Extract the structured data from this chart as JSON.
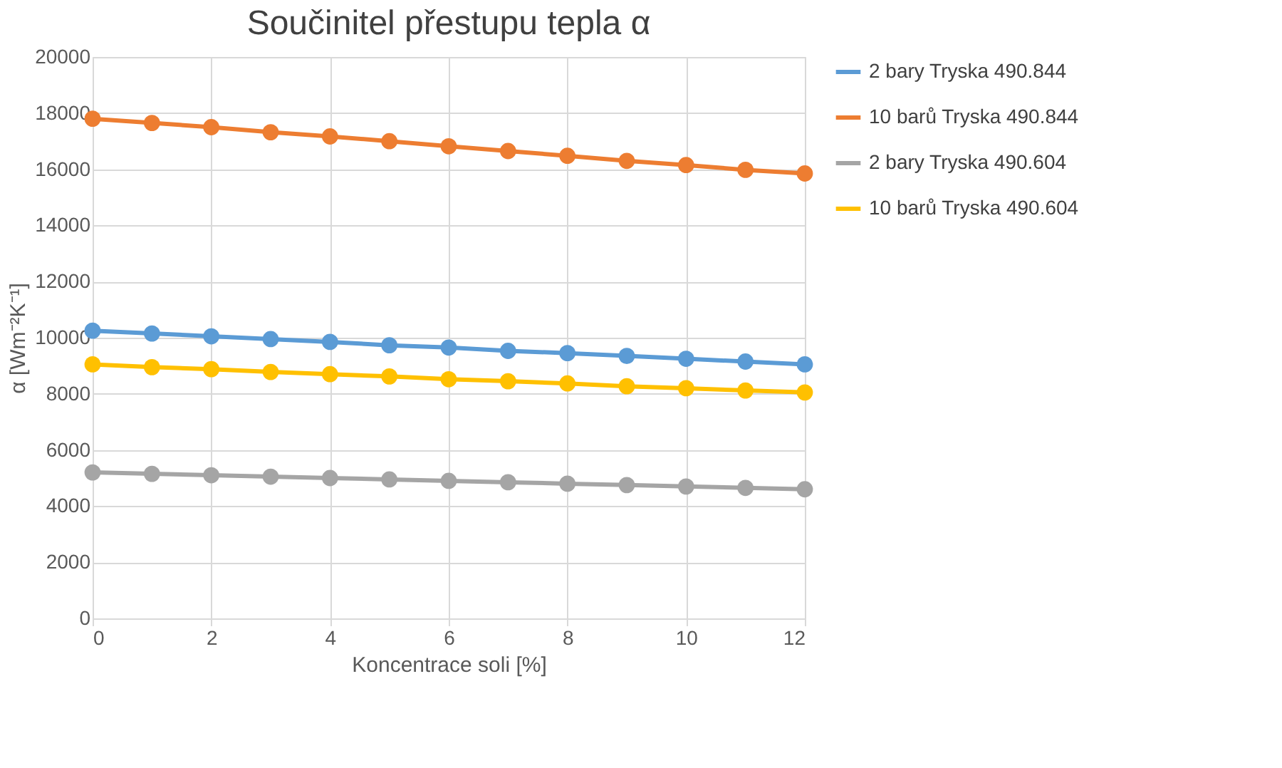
{
  "chart_data": {
    "type": "line",
    "title": "Součinitel přestupu tepla α",
    "xlabel": "Koncentrace soli [%]",
    "ylabel": "α  [Wm⁻²K⁻¹]",
    "x": [
      0,
      1,
      2,
      3,
      4,
      5,
      6,
      7,
      8,
      9,
      10,
      11,
      12
    ],
    "series": [
      {
        "name": "2 bary Tryska 490.844",
        "color": "#5b9bd5",
        "values": [
          10250,
          10150,
          10050,
          9950,
          9850,
          9730,
          9650,
          9530,
          9450,
          9350,
          9250,
          9150,
          9050
        ]
      },
      {
        "name": "10 barů Tryska 490.844",
        "color": "#ed7d31",
        "values": [
          17800,
          17650,
          17500,
          17320,
          17170,
          17000,
          16820,
          16650,
          16480,
          16300,
          16150,
          15980,
          15850
        ]
      },
      {
        "name": "2 bary Tryska 490.604",
        "color": "#a5a5a5",
        "values": [
          5200,
          5150,
          5100,
          5050,
          5000,
          4950,
          4900,
          4850,
          4800,
          4750,
          4700,
          4650,
          4600
        ]
      },
      {
        "name": "10 barů Tryska 490.604",
        "color": "#ffc000",
        "values": [
          9050,
          8950,
          8880,
          8780,
          8700,
          8620,
          8520,
          8450,
          8370,
          8270,
          8200,
          8120,
          8050
        ]
      }
    ],
    "xlim": [
      0,
      12
    ],
    "xticks": [
      0,
      2,
      4,
      6,
      8,
      10,
      12
    ],
    "ylim": [
      0,
      20000
    ],
    "yticks": [
      0,
      2000,
      4000,
      6000,
      8000,
      10000,
      12000,
      14000,
      16000,
      18000,
      20000
    ],
    "grid": true,
    "legend": "right",
    "marker": "circle",
    "line_style": "solid"
  }
}
